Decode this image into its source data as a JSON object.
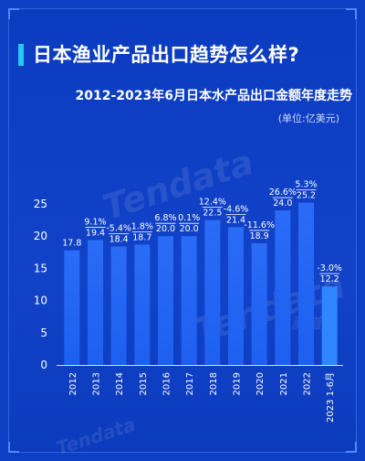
{
  "headline": "日本渔业产品出口趋势怎么样?",
  "chart_data": {
    "type": "bar",
    "title": "2012-2023年6月日本水产品出口金额年度走势",
    "unit": "(单位:亿美元)",
    "categories": [
      "2012",
      "2013",
      "2014",
      "2015",
      "2016",
      "2017",
      "2018",
      "2019",
      "2020",
      "2021",
      "2022",
      "2023 1-6月"
    ],
    "values": [
      17.8,
      19.4,
      18.4,
      18.7,
      20.0,
      20.0,
      22.5,
      21.4,
      18.9,
      24.0,
      25.2,
      12.2
    ],
    "growth_labels": [
      "",
      "9.1%",
      "-5.4%",
      "1.8%",
      "6.8%",
      "0.1%",
      "12.4%",
      "-4.6%",
      "-11.6%",
      "26.6%",
      "5.3%",
      "-3.0%"
    ],
    "value_labels": [
      "17.8",
      "19.4",
      "18.4",
      "18.7",
      "20.0",
      "20.0",
      "22.5",
      "21.4",
      "18.9",
      "24.0",
      "25.2",
      "12.2"
    ],
    "ylim": [
      0,
      25
    ],
    "yticks": [
      0,
      5,
      10,
      15,
      20,
      25
    ],
    "ytick_labels": [
      "0",
      "5",
      "10",
      "15",
      "20",
      "25"
    ],
    "grid": false,
    "colors": {
      "bar": "#1d5ff0",
      "bar_top": "#2a6cf6",
      "highlight_bar": "#2f86ff",
      "axis": "#cfe0ff",
      "text": "#ffffff"
    }
  },
  "watermarks": [
    "Tendata",
    "Tendata",
    "Tendata",
    "腾道"
  ]
}
